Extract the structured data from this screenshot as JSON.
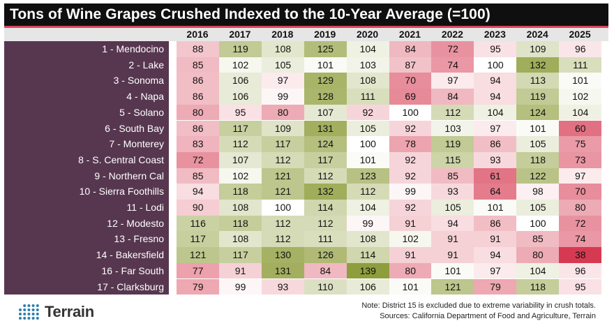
{
  "chart_data": {
    "type": "table",
    "title": "Tons of Wine Grapes Crushed Indexed to the 10-Year Average (=100)",
    "columns": [
      "2016",
      "2017",
      "2018",
      "2019",
      "2020",
      "2021",
      "2022",
      "2023",
      "2024",
      "2025"
    ],
    "rows": [
      {
        "label": "1 - Mendocino",
        "values": [
          88,
          119,
          108,
          125,
          104,
          84,
          72,
          95,
          109,
          96
        ]
      },
      {
        "label": "2 - Lake",
        "values": [
          85,
          102,
          105,
          101,
          103,
          87,
          74,
          100,
          132,
          111
        ]
      },
      {
        "label": "3 - Sonoma",
        "values": [
          86,
          106,
          97,
          129,
          108,
          70,
          97,
          94,
          113,
          101
        ]
      },
      {
        "label": "4 - Napa",
        "values": [
          86,
          106,
          99,
          128,
          111,
          69,
          84,
          94,
          119,
          102
        ]
      },
      {
        "label": "5 - Solano",
        "values": [
          80,
          95,
          80,
          107,
          92,
          100,
          112,
          104,
          124,
          104
        ]
      },
      {
        "label": "6 - South Bay",
        "values": [
          86,
          117,
          109,
          131,
          105,
          92,
          103,
          97,
          101,
          60
        ]
      },
      {
        "label": "7 - Monterey",
        "values": [
          83,
          112,
          117,
          124,
          100,
          78,
          119,
          86,
          105,
          75
        ]
      },
      {
        "label": "8 - S. Central Coast",
        "values": [
          72,
          107,
          112,
          117,
          101,
          92,
          115,
          93,
          118,
          73
        ]
      },
      {
        "label": "9 - Northern Cal",
        "values": [
          85,
          102,
          121,
          112,
          123,
          92,
          85,
          61,
          122,
          97
        ]
      },
      {
        "label": "10 - Sierra Foothills",
        "values": [
          94,
          118,
          121,
          132,
          112,
          99,
          93,
          64,
          98,
          70
        ]
      },
      {
        "label": "11 - Lodi",
        "values": [
          90,
          108,
          100,
          114,
          104,
          92,
          105,
          101,
          105,
          80
        ]
      },
      {
        "label": "12 - Modesto",
        "values": [
          116,
          118,
          112,
          112,
          99,
          91,
          94,
          86,
          100,
          72
        ]
      },
      {
        "label": "13 - Fresno",
        "values": [
          117,
          108,
          112,
          111,
          108,
          102,
          91,
          91,
          85,
          74
        ]
      },
      {
        "label": "14 - Bakersfield",
        "values": [
          121,
          117,
          130,
          126,
          114,
          91,
          91,
          94,
          80,
          38
        ]
      },
      {
        "label": "16 - Far South",
        "values": [
          77,
          91,
          131,
          84,
          139,
          80,
          101,
          97,
          104,
          96
        ]
      },
      {
        "label": "17 - Clarksburg",
        "values": [
          79,
          99,
          93,
          110,
          106,
          101,
          121,
          79,
          118,
          95
        ]
      }
    ]
  },
  "logo": {
    "name": "Terrain",
    "icon": "grid-dots-logo-icon"
  },
  "notes": {
    "line1": "Note: District 15 is excluded due to extreme variability in crush totals.",
    "line2": "Sources: California Department of Food and Agriculture, Terrain"
  },
  "colors": {
    "title_bg": "#0f0f0f",
    "accent": "#d9445f",
    "label_bg": "#57374f",
    "high": "#8f9e3c",
    "low": "#d63a52",
    "neutral": "#ffffff",
    "logo_blue": "#2e7fae"
  }
}
